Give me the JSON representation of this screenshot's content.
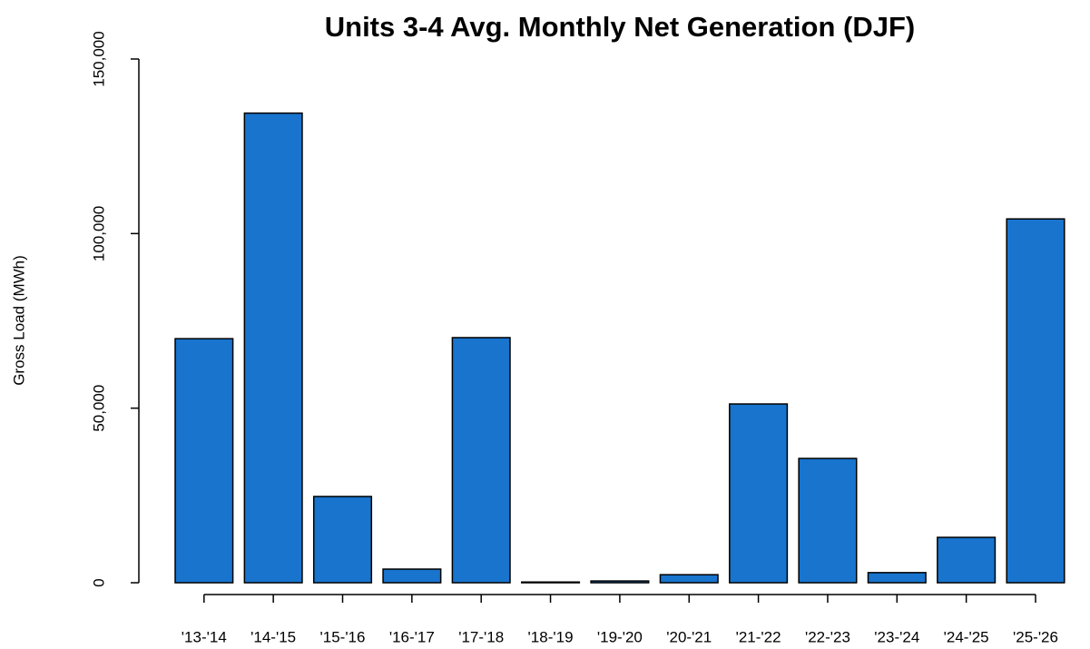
{
  "chart_data": {
    "type": "bar",
    "title": "Units 3-4 Avg. Monthly Net Generation (DJF)",
    "y_label": "Gross Load (MWh)",
    "categories": [
      "'13-'14",
      "'14-'15",
      "'15-'16",
      "'16-'17",
      "'17-'18",
      "'18-'19",
      "'19-'20",
      "'20-'21",
      "'21-'22",
      "'22-'23",
      "'23-'24",
      "'24-'25",
      "'25-'26"
    ],
    "values": [
      69900,
      134500,
      24700,
      3900,
      70200,
      200,
      500,
      2300,
      51200,
      35600,
      2900,
      13000,
      104200
    ],
    "color": "#1874cd",
    "ylim": [
      0,
      150000
    ],
    "yticks": [
      0,
      {
        "value": 50000,
        "label": "50,000"
      },
      {
        "value": 100000,
        "label": "100,000"
      },
      {
        "value": 150000,
        "label": "150,000"
      }
    ]
  }
}
